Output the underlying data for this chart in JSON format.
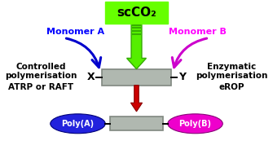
{
  "bg_color": "#ffffff",
  "scco2_box_color": "#66ff00",
  "scco2_text": "scCO₂",
  "monomer_a_text": "Monomer A",
  "monomer_a_color": "#0000ff",
  "monomer_b_text": "Monomer B",
  "monomer_b_color": "#ff00ff",
  "controlled_line1": "Controlled",
  "controlled_line2": "polymerisation",
  "controlled_line3": "ATRP or RAFT",
  "enzymatic_line1": "Enzymatic",
  "enzymatic_line2": "polymerisation",
  "enzymatic_line3": "eROP",
  "poly_a_text": "Poly(A)",
  "poly_a_color": "#2222dd",
  "poly_b_text": "Poly(B)",
  "poly_b_color": "#ee00cc",
  "rect_color": "#b0b8b0",
  "rect_edge": "#808880",
  "green_arrow_color": "#55ee00",
  "green_arrow_edge": "#33aa00",
  "red_arrow_color": "#cc0000",
  "red_arrow_edge": "#880000",
  "blue_arrow_color": "#0000cc",
  "pink_arrow_color": "#cc00cc",
  "x_label": "X",
  "y_label": "Y",
  "figsize": [
    3.35,
    1.89
  ],
  "dpi": 100
}
